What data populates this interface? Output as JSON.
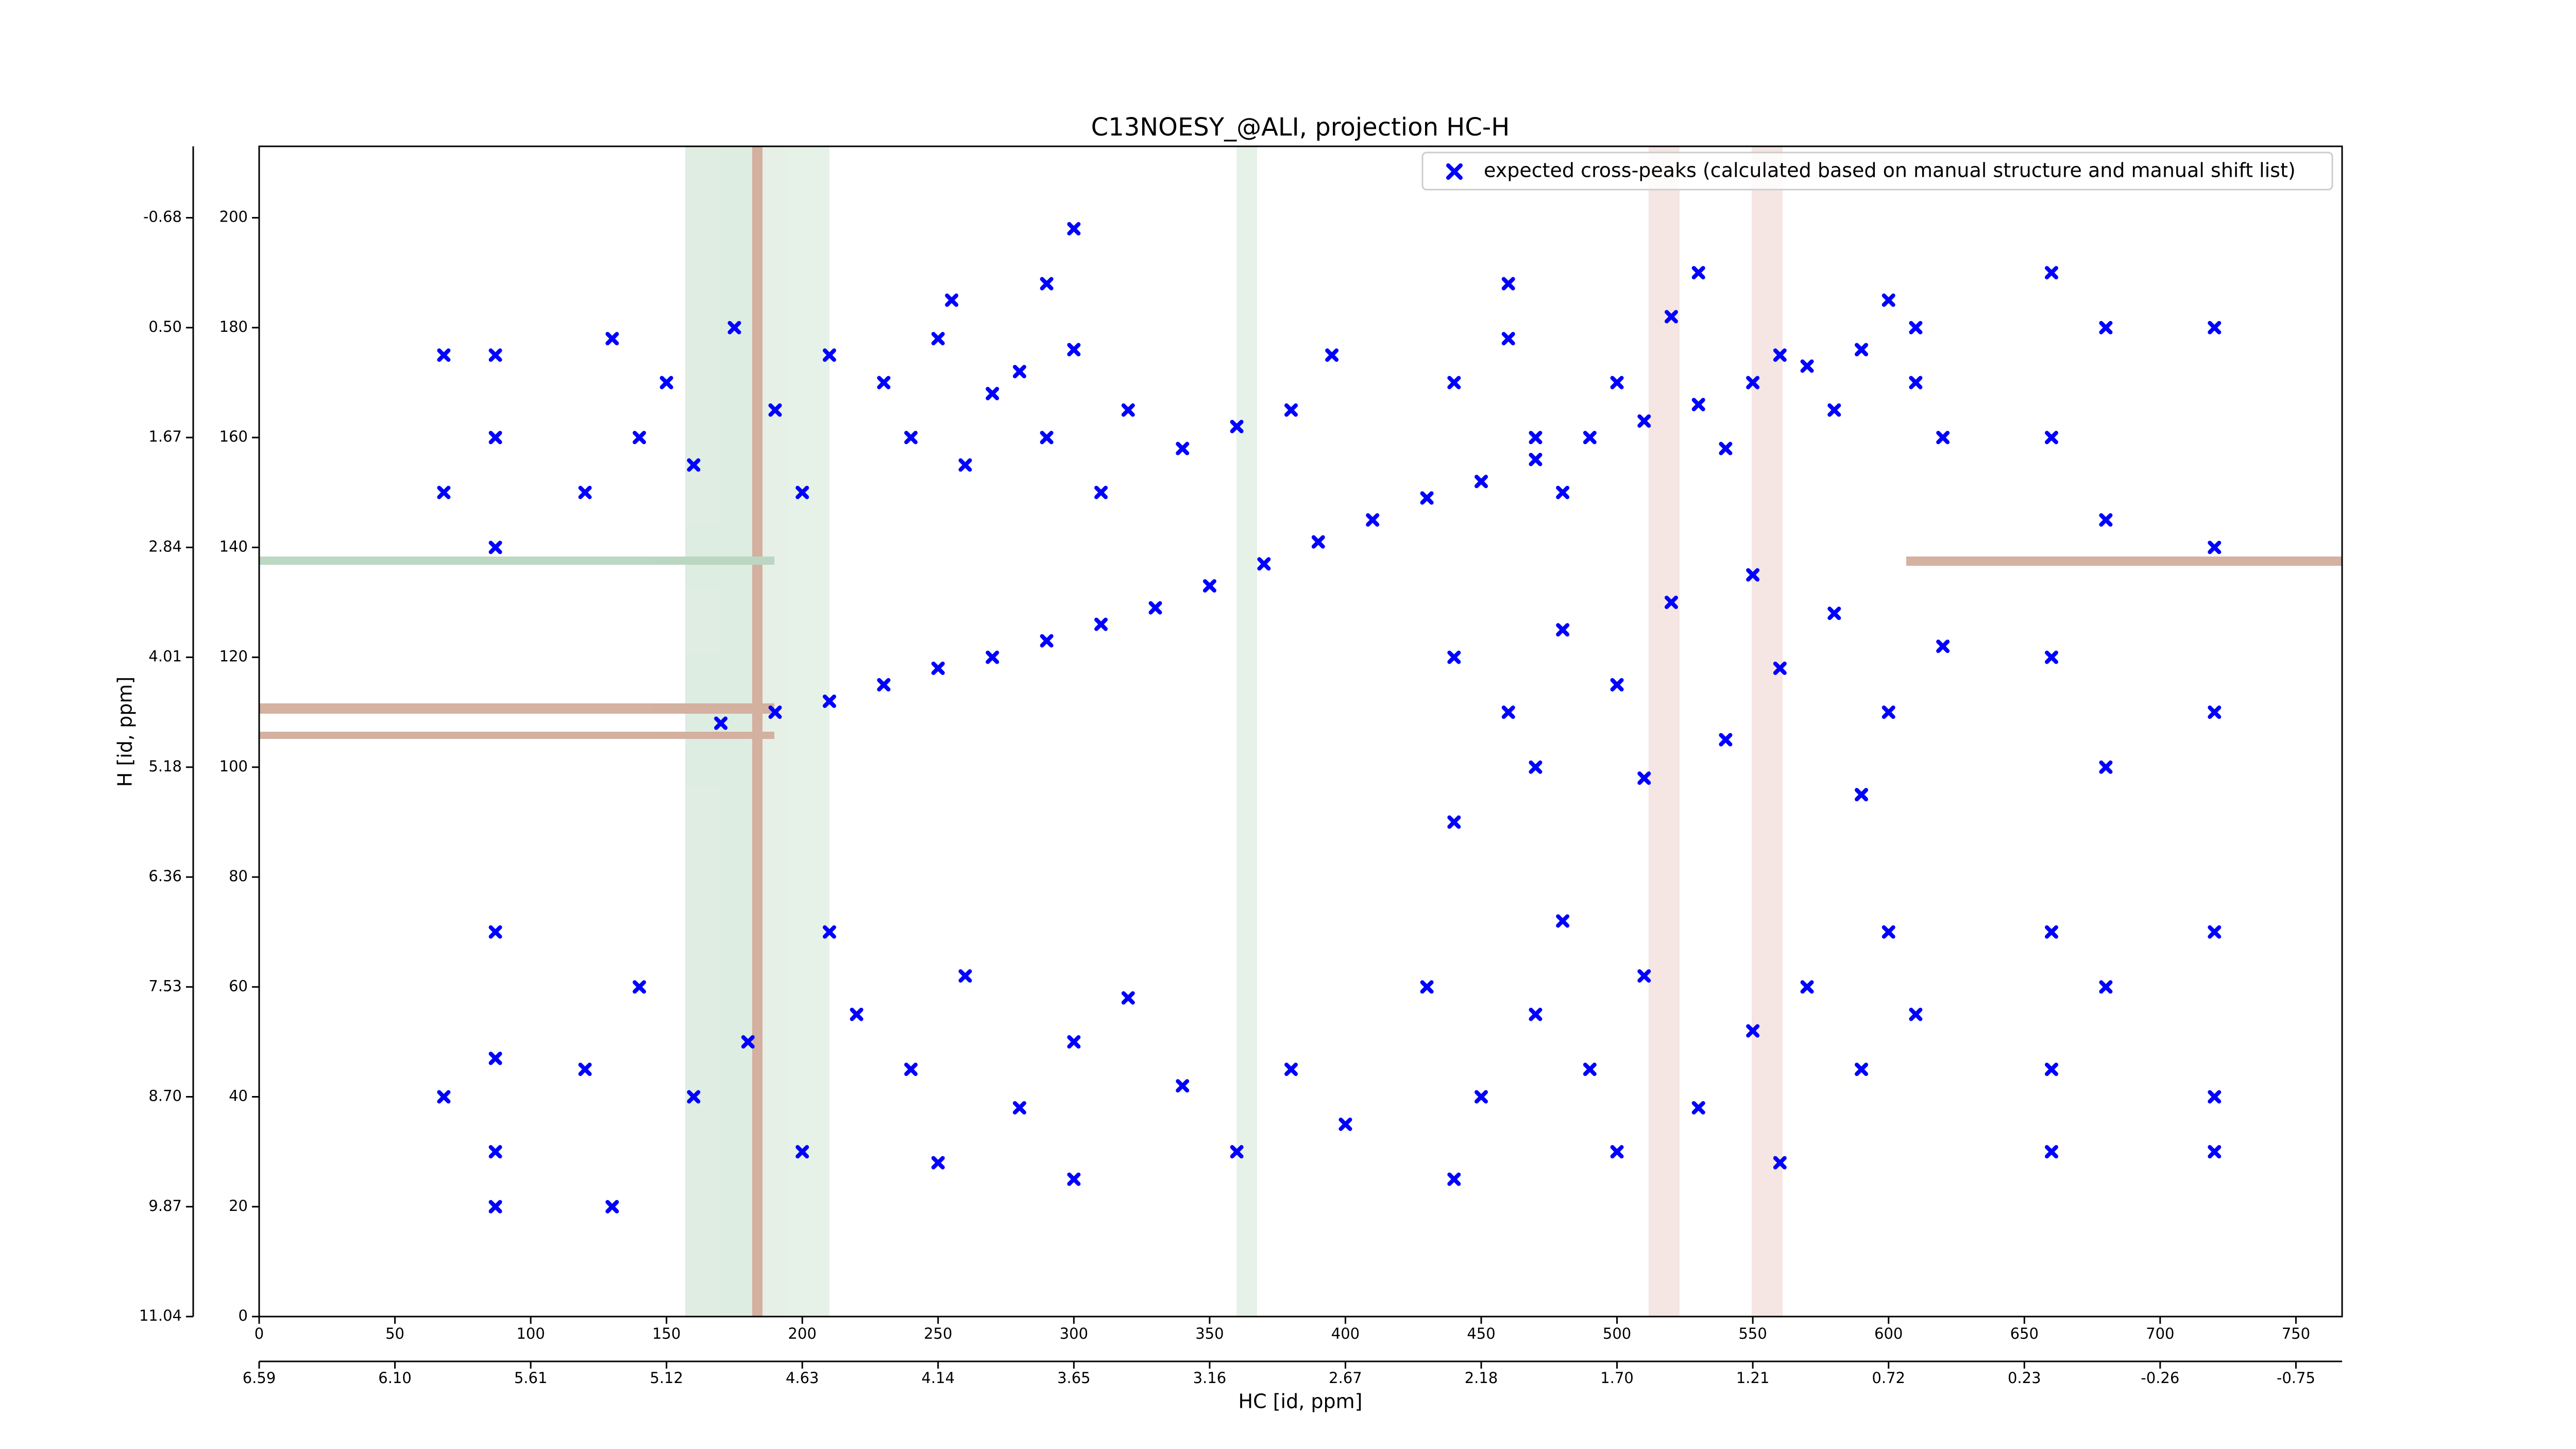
{
  "chart_data": {
    "type": "scatter",
    "title": "C13NOESY_@ALI, projection HC-H",
    "x_label": "HC [id, ppm]",
    "y_label": "H [id, ppm]",
    "legend": {
      "label": "expected cross-peaks (calculated based on manual structure and manual shift list)",
      "position": "upper right"
    },
    "xlim": [
      0,
      767
    ],
    "ylim": [
      0,
      213
    ],
    "xticks": [
      0,
      50,
      100,
      150,
      200,
      250,
      300,
      350,
      400,
      450,
      500,
      550,
      600,
      650,
      700,
      750
    ],
    "yticks": [
      0,
      20,
      40,
      60,
      80,
      100,
      120,
      140,
      160,
      180,
      200
    ],
    "x_ppm_ticks": [
      {
        "value": 0,
        "label": "6.59"
      },
      {
        "value": 50,
        "label": "6.10"
      },
      {
        "value": 100,
        "label": "5.61"
      },
      {
        "value": 150,
        "label": "5.12"
      },
      {
        "value": 200,
        "label": "4.63"
      },
      {
        "value": 250,
        "label": "4.14"
      },
      {
        "value": 300,
        "label": "3.65"
      },
      {
        "value": 350,
        "label": "3.16"
      },
      {
        "value": 400,
        "label": "2.67"
      },
      {
        "value": 450,
        "label": "2.18"
      },
      {
        "value": 500,
        "label": "1.70"
      },
      {
        "value": 550,
        "label": "1.21"
      },
      {
        "value": 600,
        "label": "0.72"
      },
      {
        "value": 650,
        "label": "0.23"
      },
      {
        "value": 700,
        "label": "-0.26"
      },
      {
        "value": 750,
        "label": "-0.75"
      }
    ],
    "y_ppm_ticks": [
      {
        "value": 200,
        "label": "-0.68"
      },
      {
        "value": 180,
        "label": "0.50"
      },
      {
        "value": 160,
        "label": "1.67"
      },
      {
        "value": 140,
        "label": "2.84"
      },
      {
        "value": 120,
        "label": "4.01"
      },
      {
        "value": 100,
        "label": "5.18"
      },
      {
        "value": 80,
        "label": "6.36"
      },
      {
        "value": 60,
        "label": "7.53"
      },
      {
        "value": 40,
        "label": "8.70"
      },
      {
        "value": 20,
        "label": "9.87"
      },
      {
        "value": 0,
        "label": "11.04"
      }
    ],
    "series": [
      {
        "name": "expected cross-peaks (calculated based on manual structure and manual shift list)",
        "color": "#0000ff",
        "x": [
          170,
          190,
          210,
          230,
          250,
          270,
          290,
          310,
          330,
          350,
          370,
          390,
          410,
          430,
          450,
          470,
          490,
          510,
          530,
          550,
          570,
          590,
          610,
          120,
          130,
          140,
          150,
          160,
          175,
          190,
          200,
          210,
          230,
          240,
          250,
          260,
          270,
          280,
          290,
          300,
          310,
          320,
          340,
          360,
          380,
          395,
          255,
          290,
          300,
          440,
          460,
          470,
          480,
          500,
          520,
          540,
          560,
          580,
          600,
          610,
          620,
          530,
          460,
          440,
          460,
          480,
          500,
          520,
          540,
          560,
          580,
          600,
          620,
          470,
          510,
          550,
          590,
          440,
          120,
          140,
          160,
          180,
          200,
          220,
          240,
          260,
          280,
          300,
          320,
          340,
          360,
          380,
          400,
          250,
          300,
          130,
          210,
          430,
          450,
          470,
          490,
          510,
          530,
          550,
          570,
          590,
          610,
          440,
          500,
          560,
          600,
          480,
          660,
          660,
          660,
          660,
          660,
          660,
          680,
          680,
          680,
          680,
          720,
          720,
          720,
          720,
          720,
          720,
          68,
          68,
          68,
          87,
          87,
          87,
          87,
          87,
          87,
          87
        ],
        "y": [
          108,
          110,
          112,
          115,
          118,
          120,
          123,
          126,
          129,
          133,
          137,
          141,
          145,
          149,
          152,
          156,
          160,
          163,
          166,
          170,
          173,
          176,
          180,
          150,
          178,
          160,
          170,
          155,
          180,
          165,
          150,
          175,
          170,
          160,
          178,
          155,
          168,
          172,
          160,
          176,
          150,
          165,
          158,
          162,
          165,
          175,
          185,
          188,
          198,
          170,
          178,
          160,
          150,
          170,
          182,
          158,
          175,
          165,
          185,
          170,
          160,
          190,
          188,
          120,
          110,
          125,
          115,
          130,
          105,
          118,
          128,
          110,
          122,
          100,
          98,
          135,
          95,
          90,
          45,
          60,
          40,
          50,
          30,
          55,
          45,
          62,
          38,
          50,
          58,
          42,
          30,
          45,
          35,
          28,
          25,
          20,
          70,
          60,
          40,
          55,
          45,
          62,
          38,
          52,
          60,
          45,
          55,
          25,
          30,
          28,
          70,
          72,
          190,
          160,
          120,
          70,
          45,
          30,
          180,
          145,
          100,
          60,
          180,
          140,
          110,
          70,
          40,
          30,
          175,
          150,
          40,
          175,
          160,
          140,
          70,
          30,
          20,
          47
        ]
      }
    ]
  }
}
